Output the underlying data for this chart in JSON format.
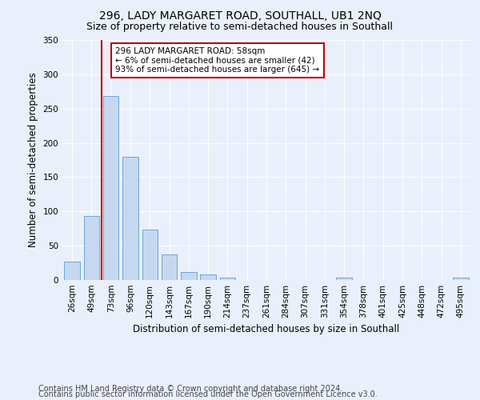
{
  "title1": "296, LADY MARGARET ROAD, SOUTHALL, UB1 2NQ",
  "title2": "Size of property relative to semi-detached houses in Southall",
  "xlabel": "Distribution of semi-detached houses by size in Southall",
  "ylabel": "Number of semi-detached properties",
  "categories": [
    "26sqm",
    "49sqm",
    "73sqm",
    "96sqm",
    "120sqm",
    "143sqm",
    "167sqm",
    "190sqm",
    "214sqm",
    "237sqm",
    "261sqm",
    "284sqm",
    "307sqm",
    "331sqm",
    "354sqm",
    "378sqm",
    "401sqm",
    "425sqm",
    "448sqm",
    "472sqm",
    "495sqm"
  ],
  "values": [
    27,
    93,
    268,
    180,
    73,
    37,
    12,
    8,
    3,
    0,
    0,
    0,
    0,
    0,
    4,
    0,
    0,
    0,
    0,
    0,
    3
  ],
  "bar_color": "#c5d8f0",
  "bar_edge_color": "#5b9bd5",
  "marker_color": "#c00000",
  "annotation_text": "296 LADY MARGARET ROAD: 58sqm\n← 6% of semi-detached houses are smaller (42)\n93% of semi-detached houses are larger (645) →",
  "annotation_box_color": "#ffffff",
  "annotation_box_edge": "#c00000",
  "ylim": [
    0,
    350
  ],
  "yticks": [
    0,
    50,
    100,
    150,
    200,
    250,
    300,
    350
  ],
  "footer1": "Contains HM Land Registry data © Crown copyright and database right 2024.",
  "footer2": "Contains public sector information licensed under the Open Government Licence v3.0.",
  "bg_color": "#eaf0fb",
  "plot_bg_color": "#eaf0fb",
  "title1_fontsize": 10,
  "title2_fontsize": 9,
  "axis_label_fontsize": 8.5,
  "tick_fontsize": 7.5,
  "footer_fontsize": 7
}
